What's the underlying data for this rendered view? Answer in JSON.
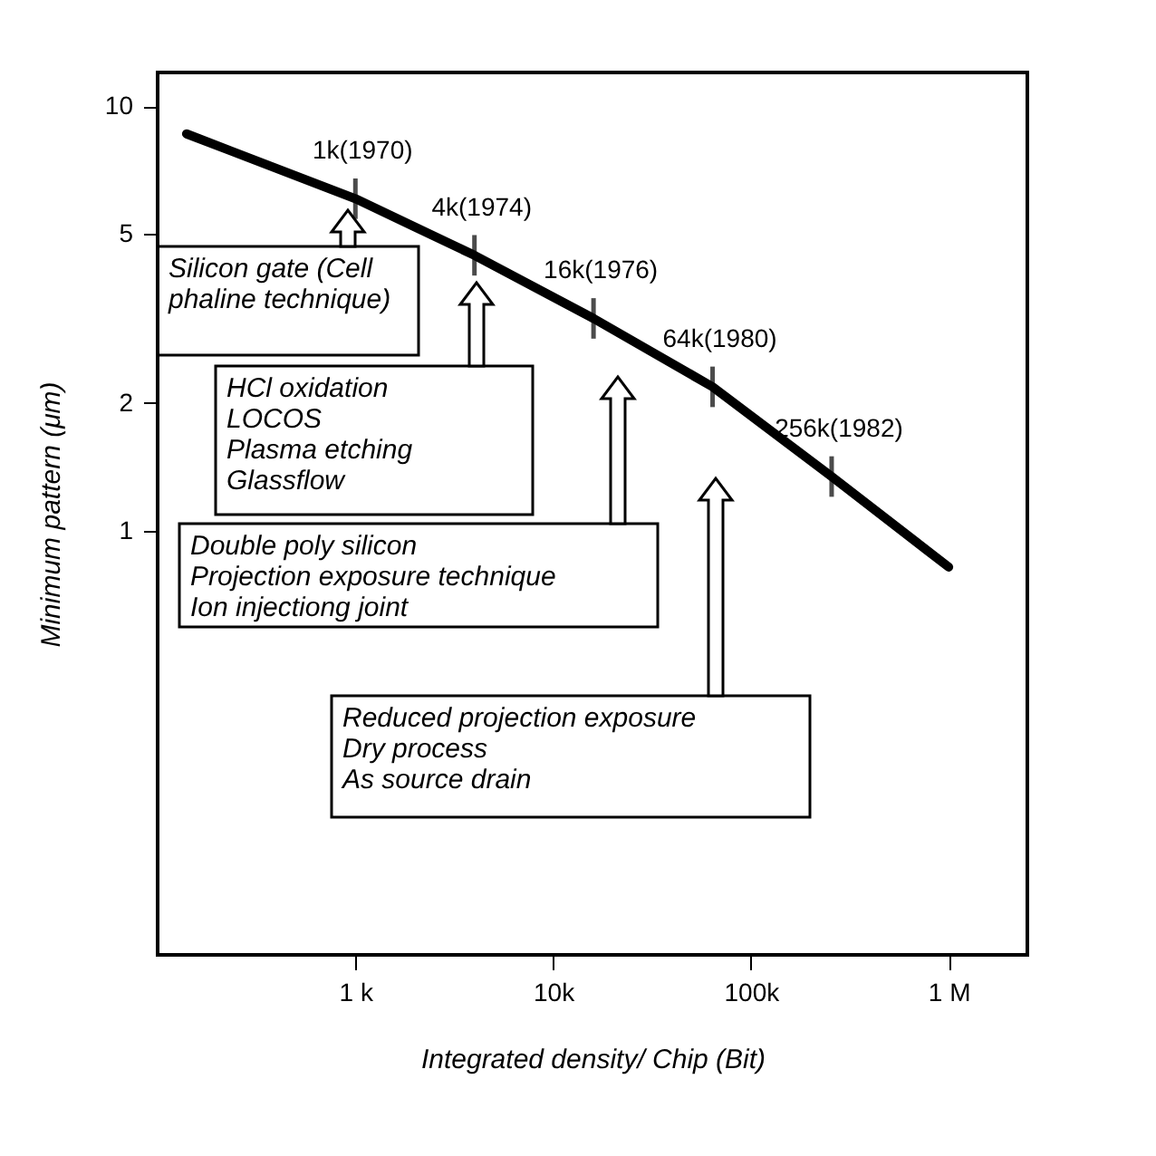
{
  "chart_data": {
    "type": "line",
    "xlabel": "Integrated density/ Chip (Bit)",
    "ylabel": "Minimum pattern (μm)",
    "x": [
      140,
      1000,
      4000,
      16000,
      64000,
      256000,
      1000000
    ],
    "series": [
      {
        "color": "#000000",
        "values": [
          8.6,
          6.05,
          4.45,
          3.16,
          2.18,
          1.34,
          0.82
        ]
      }
    ],
    "log": "xy",
    "xlim": [
      100,
      2500000
    ],
    "ylim": [
      0.1,
      12
    ],
    "xticks": [
      {
        "value": 1000,
        "label": "1 k"
      },
      {
        "value": 10000,
        "label": "10k"
      },
      {
        "value": 100000,
        "label": "100k"
      },
      {
        "value": 1000000,
        "label": "1 M"
      }
    ],
    "yticks": [
      1,
      2,
      5,
      10
    ],
    "grid": false,
    "legend": false,
    "marker": "none",
    "line_style": "solid",
    "annotations": [
      {
        "text": "1k(1970)",
        "x": 1000,
        "y": 6.05
      },
      {
        "text": "4k(1974)",
        "x": 4000,
        "y": 4.45
      },
      {
        "text": "16k(1976)",
        "x": 16000,
        "y": 3.16
      },
      {
        "text": "64k(1980)",
        "x": 64000,
        "y": 2.18
      },
      {
        "text": "256k(1982)",
        "x": 256000,
        "y": 1.34
      },
      "Silicon gate (Cell\nphaline technique)",
      "HCl oxidation\nLOCOS\nPlasma etching\nGlassflow",
      "Double poly silicon\nProjection exposure technique\nIon injectiong joint",
      "Reduced projection exposure\nDry process\nAs source drain"
    ]
  }
}
